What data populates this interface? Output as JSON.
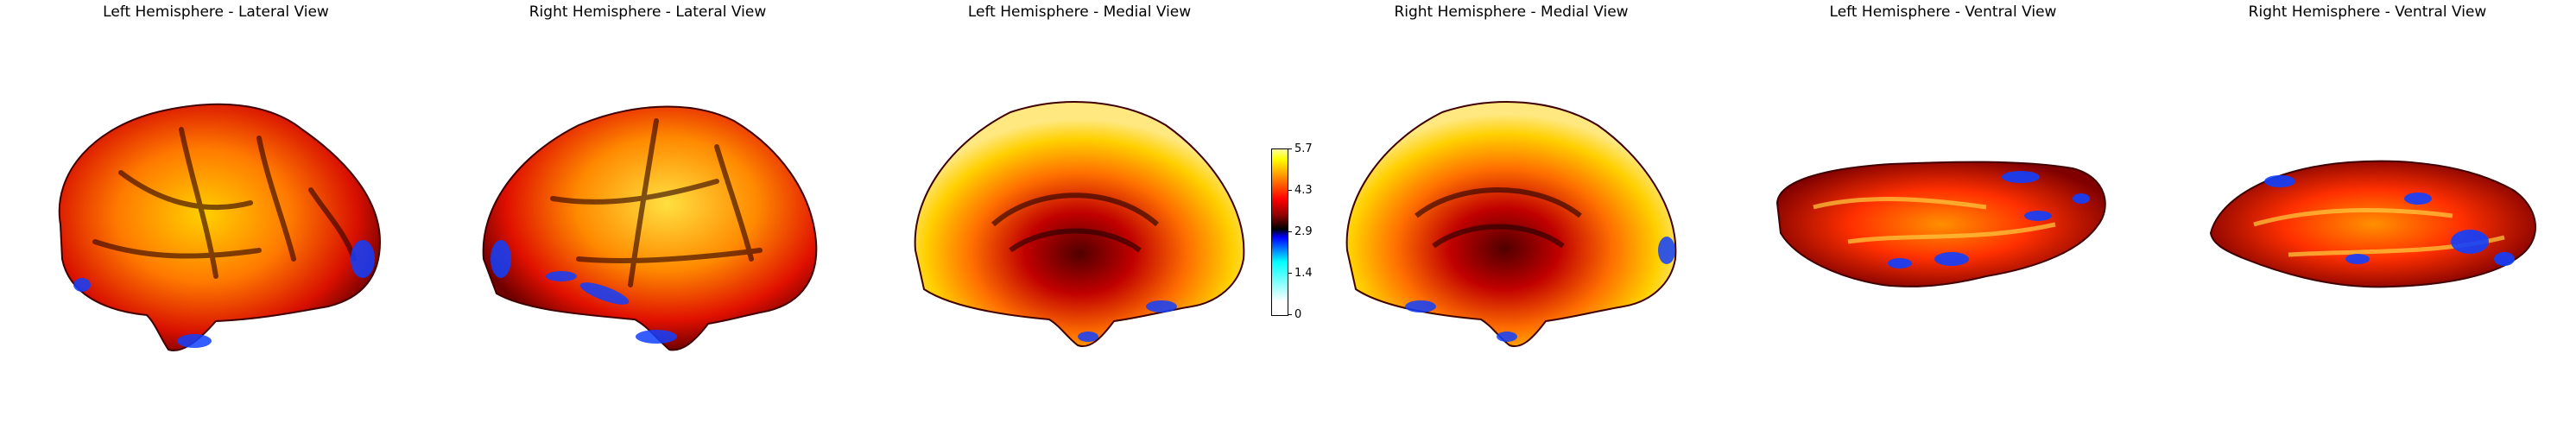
{
  "panels": [
    {
      "id": "lh-lateral",
      "title": "Left Hemisphere - Lateral View"
    },
    {
      "id": "rh-lateral",
      "title": "Right Hemisphere - Lateral View"
    },
    {
      "id": "lh-medial",
      "title": "Left Hemisphere - Medial View"
    },
    {
      "id": "rh-medial",
      "title": "Right Hemisphere - Medial View"
    },
    {
      "id": "lh-ventral",
      "title": "Left Hemisphere - Ventral View"
    },
    {
      "id": "rh-ventral",
      "title": "Right Hemisphere - Ventral View"
    }
  ],
  "colorbar": {
    "min": 0,
    "max": 5.7,
    "ticks": [
      "5.7",
      "4.3",
      "2.9",
      "1.4",
      "0"
    ],
    "tick_values": [
      5.7,
      4.3,
      2.9,
      1.4,
      0
    ],
    "colormap": "cold_hot"
  }
}
